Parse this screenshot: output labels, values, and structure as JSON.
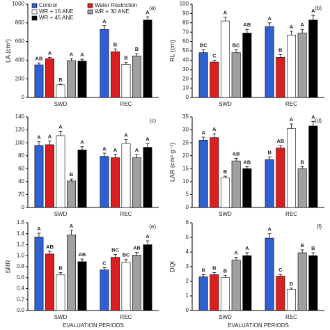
{
  "chart_data": [
    {
      "type": "bar",
      "panel": "(a)",
      "ylabel": "LA (cm²)",
      "categories": [
        "SWD",
        "REC"
      ],
      "ylim": [
        0,
        1000
      ],
      "yticks": [
        0,
        200,
        400,
        600,
        800,
        1000
      ],
      "series": [
        {
          "name": "Control",
          "color": "#2f5fd0",
          "values": [
            350,
            730
          ],
          "errors": [
            20,
            40
          ],
          "letters": [
            "AB",
            "A"
          ]
        },
        {
          "name": "Water Restriction",
          "color": "#d91f1f",
          "values": [
            415,
            490
          ],
          "errors": [
            15,
            30
          ],
          "letters": [
            "A",
            "B"
          ]
        },
        {
          "name": "WR + 15 ANE",
          "color": "#ffffff",
          "values": [
            135,
            355
          ],
          "errors": [
            8,
            20
          ],
          "letters": [
            "B",
            "B"
          ]
        },
        {
          "name": "WR + 30 ANE",
          "color": "#a0a0a0",
          "values": [
            395,
            445
          ],
          "errors": [
            20,
            25
          ],
          "letters": [
            "A",
            "B"
          ]
        },
        {
          "name": "WR + 45 ANE",
          "color": "#000000",
          "values": [
            390,
            830
          ],
          "errors": [
            20,
            35
          ],
          "letters": [
            "A",
            "A"
          ]
        }
      ]
    },
    {
      "type": "bar",
      "panel": "(b)",
      "ylabel": "RL (cm)",
      "categories": [
        "SWD",
        "REC"
      ],
      "ylim": [
        0,
        100
      ],
      "yticks": [
        0,
        10,
        20,
        30,
        40,
        50,
        60,
        70,
        80,
        90,
        100
      ],
      "series": [
        {
          "color": "#2f5fd0",
          "values": [
            48,
            76
          ],
          "errors": [
            3,
            4
          ],
          "letters": [
            "BC",
            "A"
          ]
        },
        {
          "color": "#d91f1f",
          "values": [
            38,
            43
          ],
          "errors": [
            2,
            3
          ],
          "letters": [
            "C",
            "B"
          ]
        },
        {
          "color": "#ffffff",
          "values": [
            82,
            67
          ],
          "errors": [
            4,
            4
          ],
          "letters": [
            "A",
            "A"
          ]
        },
        {
          "color": "#a0a0a0",
          "values": [
            48,
            69
          ],
          "errors": [
            3,
            4
          ],
          "letters": [
            "BC",
            "A"
          ]
        },
        {
          "color": "#000000",
          "values": [
            69,
            83
          ],
          "errors": [
            4,
            5
          ],
          "letters": [
            "AB",
            "A"
          ]
        }
      ]
    },
    {
      "type": "bar",
      "panel": "(c)",
      "categories": [
        "SWD",
        "REC"
      ],
      "ylim": [
        0,
        140
      ],
      "yticks": [
        0,
        20,
        40,
        60,
        80,
        100,
        120,
        140
      ],
      "series": [
        {
          "color": "#2f5fd0",
          "values": [
            96,
            79
          ],
          "errors": [
            6,
            5
          ],
          "letters": [
            "A",
            "A"
          ]
        },
        {
          "color": "#d91f1f",
          "values": [
            97,
            77
          ],
          "errors": [
            6,
            5
          ],
          "letters": [
            "A",
            "A"
          ]
        },
        {
          "color": "#ffffff",
          "values": [
            111,
            99
          ],
          "errors": [
            7,
            6
          ],
          "letters": [
            "A",
            "A"
          ]
        },
        {
          "color": "#a0a0a0",
          "values": [
            41,
            77
          ],
          "errors": [
            3,
            5
          ],
          "letters": [
            "B",
            "A"
          ]
        },
        {
          "color": "#000000",
          "values": [
            89,
            93
          ],
          "errors": [
            5,
            6
          ],
          "letters": [
            "A",
            "A"
          ]
        }
      ]
    },
    {
      "type": "bar",
      "panel": "(d)",
      "ylabel": "LAR (cm² g⁻¹)",
      "categories": [
        "SWD",
        "REC"
      ],
      "ylim": [
        0,
        35
      ],
      "yticks": [
        0,
        5,
        10,
        15,
        20,
        25,
        30,
        35
      ],
      "series": [
        {
          "color": "#2f5fd0",
          "values": [
            26,
            18.5
          ],
          "errors": [
            1.2,
            1.0
          ],
          "letters": [
            "A",
            "B"
          ]
        },
        {
          "color": "#d91f1f",
          "values": [
            27,
            23
          ],
          "errors": [
            1.5,
            1.0
          ],
          "letters": [
            "A",
            "AB"
          ]
        },
        {
          "color": "#ffffff",
          "values": [
            11.5,
            30.5
          ],
          "errors": [
            0.6,
            1.8
          ],
          "letters": [
            "B",
            "A"
          ]
        },
        {
          "color": "#a0a0a0",
          "values": [
            18,
            15
          ],
          "errors": [
            1.0,
            0.8
          ],
          "letters": [
            "AB",
            "B"
          ]
        },
        {
          "color": "#000000",
          "values": [
            15,
            31.5
          ],
          "errors": [
            0.8,
            1.8
          ],
          "letters": [
            "AB",
            "A"
          ]
        }
      ]
    },
    {
      "type": "bar",
      "panel": "(e)",
      "ylabel": "SRR",
      "xlabel": "EVALUATION PERIODS",
      "categories": [
        "SWD",
        "REC"
      ],
      "ylim": [
        0,
        1.6
      ],
      "yticks": [
        {
          "value": 0,
          "label": "0.0"
        },
        {
          "value": 0.2,
          "label": "0.2"
        },
        {
          "value": 0.4,
          "label": "0.4"
        },
        {
          "value": 0.6,
          "label": "0.6"
        },
        {
          "value": 0.8,
          "label": "0.8"
        },
        {
          "value": 1,
          "label": "1.0"
        },
        {
          "value": 1.2,
          "label": "1.2"
        },
        {
          "value": 1.4,
          "label": "1.4"
        },
        {
          "value": 1.6,
          "label": "1.6"
        }
      ],
      "series": [
        {
          "color": "#2f5fd0",
          "values": [
            1.34,
            0.74
          ],
          "errors": [
            0.07,
            0.04
          ],
          "letters": [
            "A",
            "C"
          ]
        },
        {
          "color": "#d91f1f",
          "values": [
            1.03,
            0.97
          ],
          "errors": [
            0.05,
            0.05
          ],
          "letters": [
            "AB",
            "BC"
          ]
        },
        {
          "color": "#ffffff",
          "values": [
            0.65,
            0.88
          ],
          "errors": [
            0.04,
            0.05
          ],
          "letters": [
            "B",
            "BC"
          ]
        },
        {
          "color": "#a0a0a0",
          "values": [
            1.38,
            1.01
          ],
          "errors": [
            0.08,
            0.05
          ],
          "letters": [
            "A",
            "AB"
          ]
        },
        {
          "color": "#000000",
          "values": [
            0.89,
            1.2
          ],
          "errors": [
            0.05,
            0.07
          ],
          "letters": [
            "AB",
            "A"
          ]
        }
      ]
    },
    {
      "type": "bar",
      "panel": "(f)",
      "ylabel": "DQI",
      "xlabel": "EVALUATION PERIODS",
      "categories": [
        "SWD",
        "REC"
      ],
      "ylim": [
        0,
        6
      ],
      "yticks": [
        0,
        1,
        2,
        3,
        4,
        5,
        6
      ],
      "series": [
        {
          "color": "#2f5fd0",
          "values": [
            2.3,
            4.95
          ],
          "errors": [
            0.15,
            0.3
          ],
          "letters": [
            "B",
            "A"
          ]
        },
        {
          "color": "#d91f1f",
          "values": [
            2.45,
            2.35
          ],
          "errors": [
            0.15,
            0.12
          ],
          "letters": [
            "B",
            "C"
          ]
        },
        {
          "color": "#ffffff",
          "values": [
            2.25,
            1.45
          ],
          "errors": [
            0.15,
            0.08
          ],
          "letters": [
            "B",
            "D"
          ]
        },
        {
          "color": "#a0a0a0",
          "values": [
            3.45,
            3.95
          ],
          "errors": [
            0.2,
            0.2
          ],
          "letters": [
            "A",
            "B"
          ]
        },
        {
          "color": "#000000",
          "values": [
            3.75,
            3.75
          ],
          "errors": [
            0.2,
            0.2
          ],
          "letters": [
            "A",
            "B"
          ]
        }
      ]
    }
  ]
}
